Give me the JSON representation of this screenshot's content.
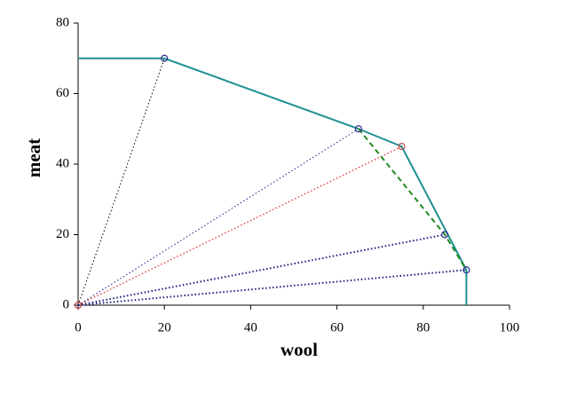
{
  "chart_data": {
    "type": "line",
    "xlabel": "wool",
    "ylabel": "meat",
    "xlim": [
      0,
      100
    ],
    "xticks": [
      0,
      20,
      40,
      60,
      80,
      100
    ],
    "ylim": [
      0,
      80
    ],
    "yticks": [
      0,
      20,
      40,
      60,
      80
    ],
    "series": [
      {
        "x": [
          0,
          20
        ],
        "values": [
          0,
          70
        ],
        "color": "#000000",
        "dash": "dotted",
        "width": 1
      },
      {
        "x": [
          0,
          65
        ],
        "values": [
          0,
          50
        ],
        "color": "#1a1a80",
        "dash": "dotted",
        "width": 1
      },
      {
        "x": [
          0,
          75
        ],
        "values": [
          0,
          45
        ],
        "color": "#e02020",
        "dash": "dotted",
        "width": 1.2
      },
      {
        "x": [
          0,
          85
        ],
        "values": [
          0,
          20
        ],
        "color": "#1a1a80",
        "dash": "dotted",
        "width": 2
      },
      {
        "x": [
          0,
          90
        ],
        "values": [
          0,
          10
        ],
        "color": "#1a1a80",
        "dash": "dotted",
        "width": 2
      },
      {
        "x": [
          0,
          20,
          65,
          75,
          90,
          90
        ],
        "values": [
          70,
          70,
          50,
          45,
          10,
          0
        ],
        "color": "#1f9090",
        "dash": "solid",
        "width": 2
      },
      {
        "x": [
          65,
          85,
          90
        ],
        "values": [
          50,
          20,
          10
        ],
        "color": "#1f8a1f",
        "dash": "dashed",
        "width": 2
      },
      {
        "x": [
          0,
          20,
          65,
          75,
          85,
          90
        ],
        "values": [
          0,
          70,
          50,
          45,
          20,
          10
        ],
        "marker": true,
        "marker_colors": [
          "#c04040",
          "#303090",
          "#303090",
          "#c05050",
          "#303090",
          "#303090"
        ]
      }
    ]
  }
}
